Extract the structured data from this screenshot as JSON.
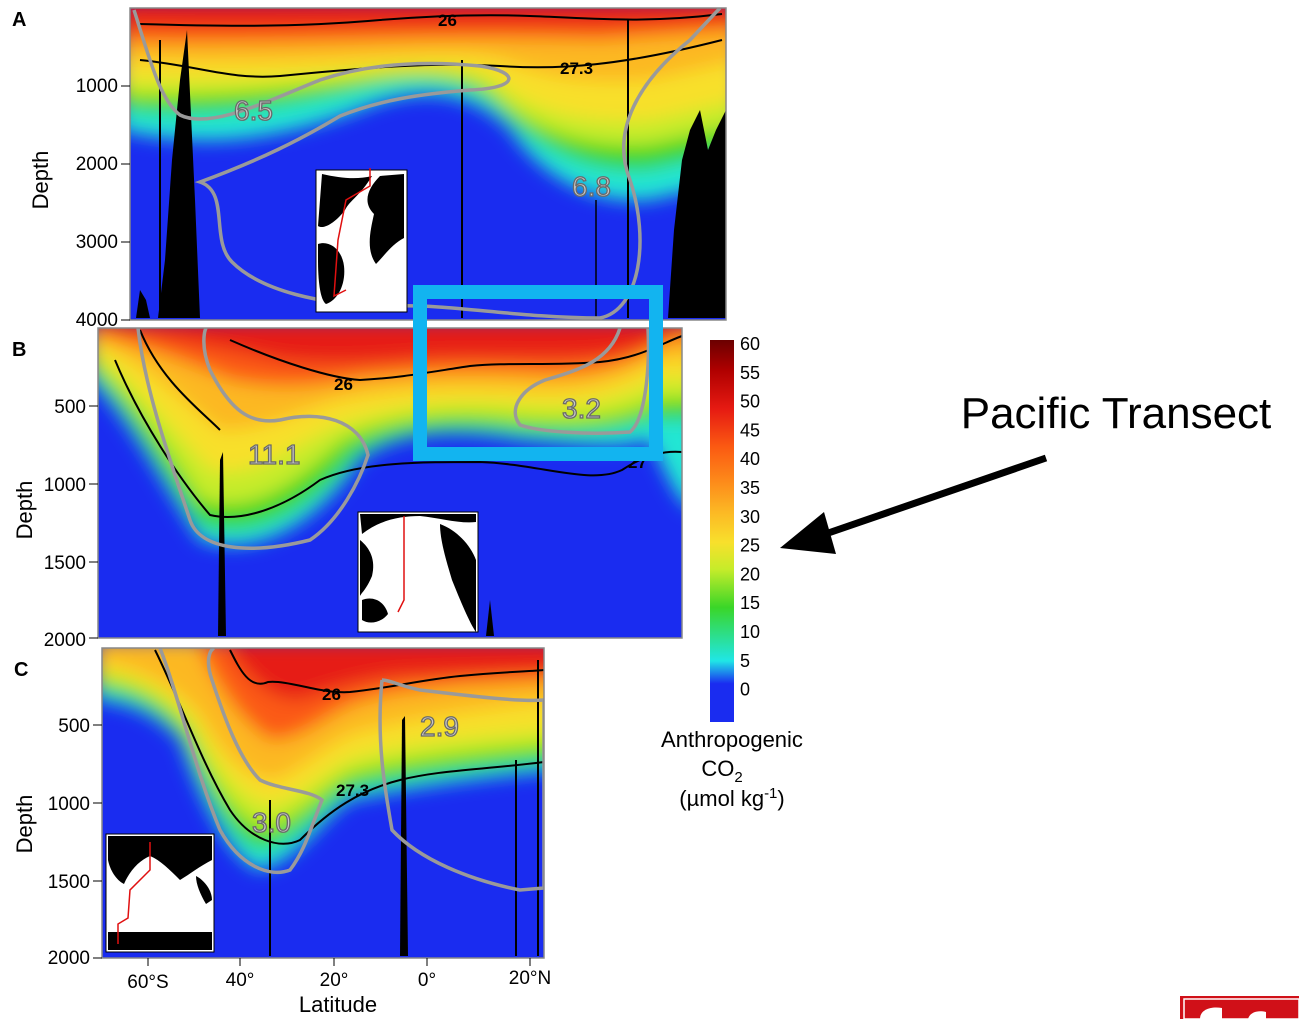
{
  "chart_data": {
    "type": "heatmap",
    "title": "",
    "annotation": "Pacific Transect",
    "colorbar": {
      "label_lines": [
        "Anthropogenic",
        "CO",
        "2",
        "(µmol kg",
        "-1",
        ")"
      ],
      "ticks": [
        "60",
        "55",
        "50",
        "45",
        "40",
        "35",
        "30",
        "25",
        "20",
        "15",
        "10",
        "5",
        "0"
      ],
      "colors": [
        "#6b0000",
        "#9e0000",
        "#d01010",
        "#ee2a10",
        "#fb5a12",
        "#fd8a1a",
        "#fcb824",
        "#f8e02c",
        "#c6ec2a",
        "#3ad628",
        "#20e6d4",
        "#2aa0ff",
        "#1a2cf0"
      ]
    },
    "x_axis": {
      "label": "Latitude",
      "ticks": [
        "60°S",
        "40°",
        "20°",
        "0°",
        "20°N"
      ]
    },
    "panels": [
      {
        "id": "A",
        "ylabel": "Depth",
        "yticks": [
          "1000",
          "2000",
          "3000",
          "4000"
        ],
        "ylim": [
          0,
          4000
        ],
        "isopycnals": [
          "26",
          "27.3"
        ],
        "inventories": [
          "6.5",
          "6.8"
        ]
      },
      {
        "id": "B",
        "ylabel": "Depth",
        "yticks": [
          "500",
          "1000",
          "1500",
          "2000"
        ],
        "ylim": [
          0,
          2000
        ],
        "isopycnals": [
          "26",
          "27"
        ],
        "inventories": [
          "11.1",
          "3.2"
        ]
      },
      {
        "id": "C",
        "ylabel": "Depth",
        "yticks": [
          "500",
          "1000",
          "1500",
          "2000"
        ],
        "ylim": [
          0,
          2000
        ],
        "isopycnals": [
          "26",
          "27.3"
        ],
        "inventories": [
          "2.9",
          "3.0"
        ]
      }
    ]
  }
}
